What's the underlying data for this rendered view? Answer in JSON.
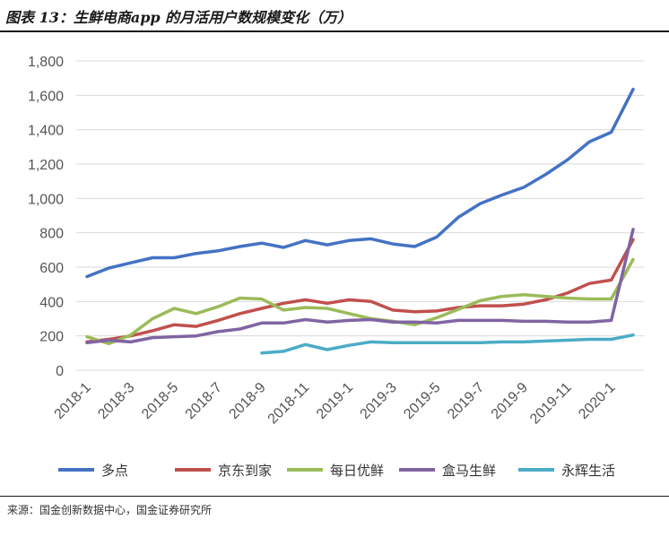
{
  "title": "图表 13：生鲜电商app 的月活用户数规模变化（万）",
  "source": "来源：国金创新数据中心，国金证券研究所",
  "chart_data": {
    "type": "line",
    "title": "图表 13：生鲜电商app 的月活用户数规模变化（万）",
    "xlabel": "",
    "ylabel": "",
    "ylim": [
      0,
      1800
    ],
    "yticks": [
      "0",
      "200",
      "400",
      "600",
      "800",
      "1,000",
      "1,200",
      "1,400",
      "1,600",
      "1,800"
    ],
    "y_tick_values": [
      0,
      200,
      400,
      600,
      800,
      1000,
      1200,
      1400,
      1600,
      1800
    ],
    "x": [
      "2018-1",
      "2018-2",
      "2018-3",
      "2018-4",
      "2018-5",
      "2018-6",
      "2018-7",
      "2018-8",
      "2018-9",
      "2018-10",
      "2018-11",
      "2018-12",
      "2019-1",
      "2019-2",
      "2019-3",
      "2019-4",
      "2019-5",
      "2019-6",
      "2019-7",
      "2019-8",
      "2019-9",
      "2019-10",
      "2019-11",
      "2019-12",
      "2020-1",
      "2020-2"
    ],
    "x_tick_labels": [
      "2018-1",
      "2018-3",
      "2018-5",
      "2018-7",
      "2018-9",
      "2018-11",
      "2019-1",
      "2019-3",
      "2019-5",
      "2019-7",
      "2019-9",
      "2019-11",
      "2020-1"
    ],
    "grid": "horizontal",
    "legend_position": "bottom",
    "series": [
      {
        "name": "多点",
        "color": "#4472C4",
        "values": [
          545,
          595,
          625,
          655,
          655,
          680,
          695,
          720,
          740,
          715,
          755,
          730,
          755,
          765,
          735,
          720,
          775,
          890,
          970,
          1020,
          1065,
          1140,
          1225,
          1330,
          1385,
          1635
        ]
      },
      {
        "name": "京东到家",
        "color": "#C0504D",
        "values": [
          165,
          180,
          200,
          230,
          265,
          255,
          290,
          330,
          360,
          390,
          410,
          390,
          410,
          400,
          350,
          340,
          345,
          365,
          375,
          375,
          385,
          410,
          450,
          505,
          525,
          760
        ]
      },
      {
        "name": "每日优鲜",
        "color": "#9BBB59",
        "values": [
          195,
          155,
          205,
          300,
          360,
          330,
          370,
          420,
          415,
          350,
          365,
          360,
          330,
          300,
          285,
          265,
          305,
          355,
          405,
          430,
          440,
          430,
          420,
          415,
          415,
          645
        ]
      },
      {
        "name": "盒马生鲜",
        "color": "#8064A2",
        "values": [
          160,
          175,
          165,
          190,
          195,
          200,
          225,
          240,
          275,
          275,
          295,
          280,
          290,
          295,
          280,
          280,
          275,
          290,
          290,
          290,
          285,
          285,
          280,
          280,
          290,
          820
        ]
      },
      {
        "name": "永辉生活",
        "color": "#4BACC6",
        "values": [
          null,
          null,
          null,
          null,
          null,
          null,
          null,
          null,
          100,
          110,
          150,
          120,
          145,
          165,
          160,
          160,
          160,
          160,
          160,
          165,
          165,
          170,
          175,
          180,
          180,
          205
        ]
      }
    ]
  }
}
